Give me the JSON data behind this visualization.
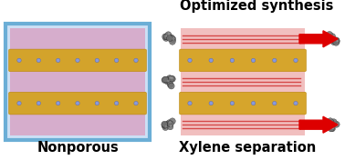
{
  "title_top": "Optimized synthesis",
  "label_left": "Nonporous",
  "label_right": "Xylene separation",
  "bg_color": "#ffffff",
  "box_edge_color": "#6baed6",
  "box_fill_color": "#cce0f5",
  "yellow_color": "#d4a020",
  "pink_color": "#d8a8c8",
  "red_arrow_color": "#dd0000",
  "mol_dark": "#707070",
  "mol_light": "#aaaaaa",
  "channel_pink": "#f0b8b8",
  "channel_red_line": "#cc2020",
  "title_fontsize": 10.5,
  "label_fontsize": 10.5,
  "fig_w": 3.78,
  "fig_h": 1.76,
  "dpi": 100
}
